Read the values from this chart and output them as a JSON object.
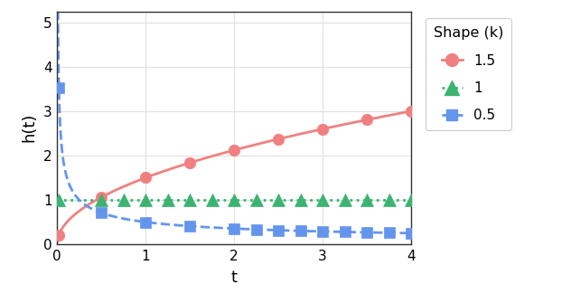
{
  "title": "",
  "xlabel": "t",
  "ylabel": "h(t)",
  "xlim": [
    0,
    4
  ],
  "ylim": [
    0,
    5.25
  ],
  "xticks": [
    0,
    1,
    2,
    3,
    4
  ],
  "yticks": [
    0,
    1,
    2,
    3,
    4,
    5
  ],
  "lambda": 1.0,
  "shapes": [
    1.5,
    1.0,
    0.5
  ],
  "shape_labels": [
    "1.5",
    "1",
    "0.5"
  ],
  "colors": [
    "#F08080",
    "#3CB371",
    "#6495ED"
  ],
  "linestyles": [
    "-",
    ":",
    "--"
  ],
  "markers": [
    "o",
    "^",
    "s"
  ],
  "legend_title": "Shape (k)",
  "background_color": "#ffffff",
  "grid_color": "#e0e0e0",
  "panel_bg": "#ffffff",
  "t_start": 0.0,
  "t_end": 4.0,
  "t_points": 500,
  "marker_t_red": [
    0.02,
    0.5,
    1.0,
    1.5,
    2.0,
    2.5,
    3.0,
    3.5,
    4.0
  ],
  "marker_t_green": [
    0.02,
    0.5,
    0.75,
    1.0,
    1.25,
    1.5,
    1.75,
    2.0,
    2.25,
    2.5,
    2.75,
    3.0,
    3.25,
    3.5,
    3.75,
    4.0
  ],
  "marker_t_blue": [
    0.02,
    0.5,
    1.0,
    1.5,
    2.0,
    2.25,
    2.5,
    2.75,
    3.0,
    3.25,
    3.5,
    3.75,
    4.0
  ]
}
